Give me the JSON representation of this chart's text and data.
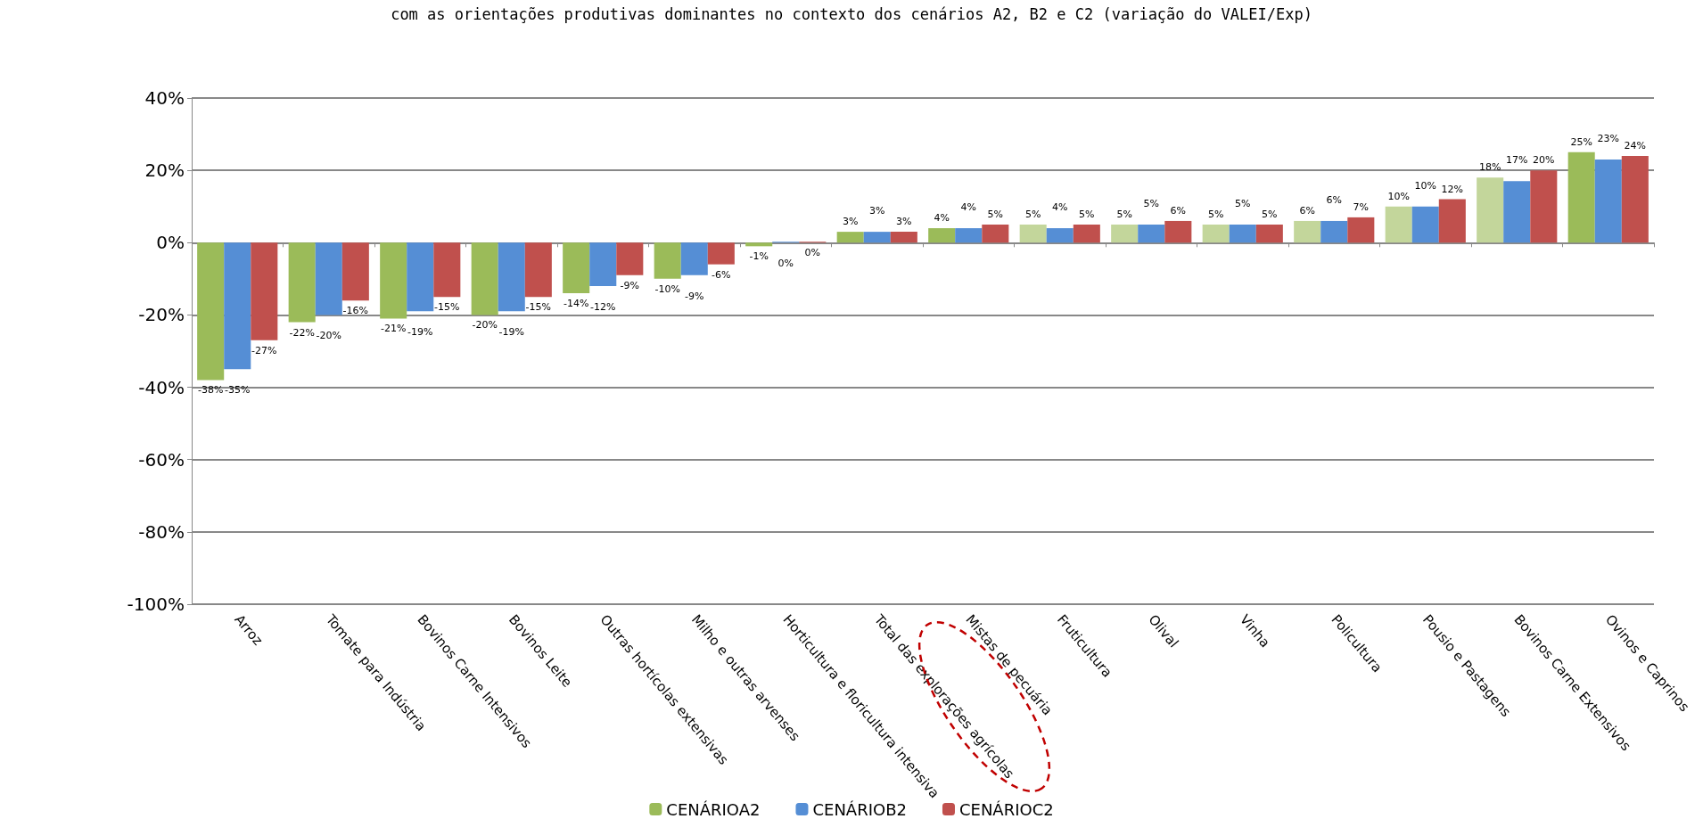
{
  "chart_data": {
    "type": "bar",
    "title": "com as orientações produtivas dominantes no contexto dos cenários A2, B2 e C2 (variação do VALEI/Exp)",
    "categories": [
      "Arroz",
      "Tomate para Indústria",
      "Bovinos Carne Intensivos",
      "Bovinos Leite",
      "Outras hortícolas extensivas",
      "Milho e outras arvenses",
      "Horticultura e floricultura intensiva",
      "Total das explorações agrícolas",
      "Mistas de pecuária",
      "Fruticultura",
      "Olival",
      "Vinha",
      "Policultura",
      "Pousio e Pastagens",
      "Bovinos Carne Extensivos",
      "Ovinos e Caprinos"
    ],
    "series": [
      {
        "name": "CENÁRIOA2",
        "color": "#9bbb59",
        "colors": [
          "#9bbb59",
          "#9bbb59",
          "#9bbb59",
          "#9bbb59",
          "#9bbb59",
          "#9bbb59",
          "#9bbb59",
          "#9bbb59",
          "#9bbb59",
          "#c3d69b",
          "#c3d69b",
          "#c3d69b",
          "#c3d69b",
          "#c3d69b",
          "#c3d69b",
          "#9bbb59"
        ],
        "values": [
          -38,
          -22,
          -21,
          -20,
          -14,
          -10,
          -1,
          3,
          4,
          5,
          5,
          5,
          6,
          10,
          18,
          25
        ],
        "value_labels": [
          "-38%",
          "-22%",
          "-21%",
          "-20%",
          "-14%",
          "-10%",
          "-1%",
          "3%",
          "4%",
          "5%",
          "5%",
          "5%",
          "6%",
          "10%",
          "18%",
          "25%"
        ]
      },
      {
        "name": "CENÁRIOB2",
        "color": "#558ed5",
        "values": [
          -35,
          -20,
          -19,
          -19,
          -12,
          -9,
          0,
          3,
          4,
          4,
          5,
          5,
          6,
          10,
          17,
          23
        ],
        "value_labels": [
          "-35%",
          "-20%",
          "-19%",
          "-19%",
          "-12%",
          "-9%",
          "0%",
          "3%",
          "4%",
          "4%",
          "5%",
          "5%",
          "6%",
          "10%",
          "17%",
          "23%"
        ]
      },
      {
        "name": "CENÁRIOC2",
        "color": "#c0504d",
        "values": [
          -27,
          -16,
          -15,
          -15,
          -9,
          -6,
          0,
          3,
          5,
          5,
          6,
          5,
          7,
          12,
          20,
          24
        ],
        "value_labels": [
          "-27%",
          "-16%",
          "-15%",
          "-15%",
          "-9%",
          "-6%",
          "0%",
          "3%",
          "5%",
          "5%",
          "6%",
          "5%",
          "7%",
          "12%",
          "20%",
          "24%"
        ]
      }
    ],
    "ylim": [
      -100,
      40
    ],
    "yticks": [
      {
        "value": -100,
        "label": "-100%"
      },
      {
        "value": -80,
        "label": "-80%"
      },
      {
        "value": -60,
        "label": "-60%"
      },
      {
        "value": -40,
        "label": "-40%"
      },
      {
        "value": -20,
        "label": "-20%"
      },
      {
        "value": 0,
        "label": "0%"
      },
      {
        "value": 20,
        "label": "20%"
      },
      {
        "value": 40,
        "label": "40%"
      }
    ],
    "grid": "y",
    "legend": "bottom"
  }
}
